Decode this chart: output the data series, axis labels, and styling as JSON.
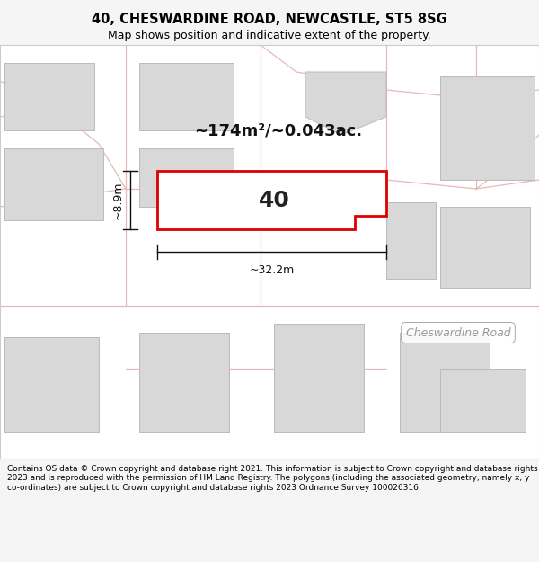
{
  "title": "40, CHESWARDINE ROAD, NEWCASTLE, ST5 8SG",
  "subtitle": "Map shows position and indicative extent of the property.",
  "area_text": "~174m²/~0.043ac.",
  "property_number": "40",
  "dim_width": "~32.2m",
  "dim_height": "~8.9m",
  "footer": "Contains OS data © Crown copyright and database right 2021. This information is subject to Crown copyright and database rights 2023 and is reproduced with the permission of HM Land Registry. The polygons (including the associated geometry, namely x, y co-ordinates) are subject to Crown copyright and database rights 2023 Ordnance Survey 100026316.",
  "road_label": "Cheswardine Road",
  "bg_color": "#f5f5f5",
  "map_bg": "#ffffff",
  "road_color": "#e8b8b8",
  "building_fill": "#d8d8d8",
  "building_stroke": "#bbbbbb",
  "highlight_fill": "#ffffff",
  "highlight_stroke": "#dd0000",
  "dim_color": "#111111",
  "title_color": "#000000",
  "footer_color": "#000000",
  "road_label_color": "#999999",
  "area_color": "#111111"
}
